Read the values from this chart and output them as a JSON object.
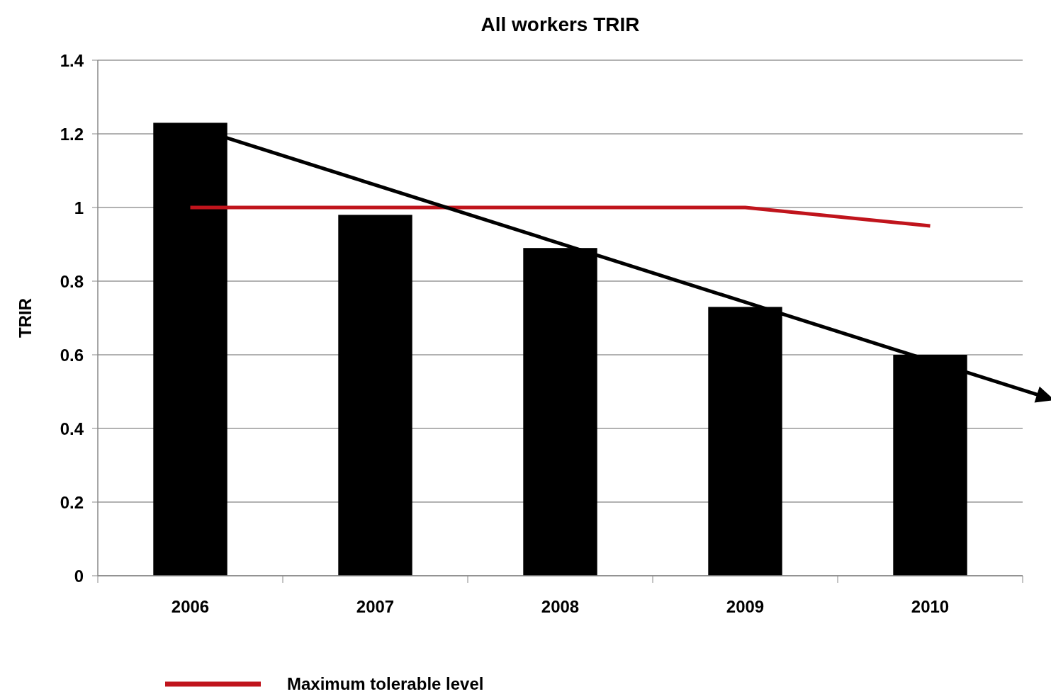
{
  "chart_data": {
    "type": "bar",
    "title": "All workers TRIR",
    "ylabel": "TRIR",
    "categories": [
      "2006",
      "2007",
      "2008",
      "2009",
      "2010"
    ],
    "series": [
      {
        "color": "#000000",
        "values": [
          1.23,
          0.98,
          0.89,
          0.73,
          0.6
        ]
      },
      {
        "type": "line",
        "name": "Maximum tolerable level",
        "color": "#c0141c",
        "values": [
          1,
          1,
          1,
          1,
          0.95
        ]
      }
    ],
    "ylim": [
      0,
      1.4
    ],
    "yticks": [
      0,
      0.2,
      0.4,
      0.6,
      0.8,
      1,
      1.2,
      1.4
    ],
    "grid": "y",
    "legend": "bottom"
  }
}
